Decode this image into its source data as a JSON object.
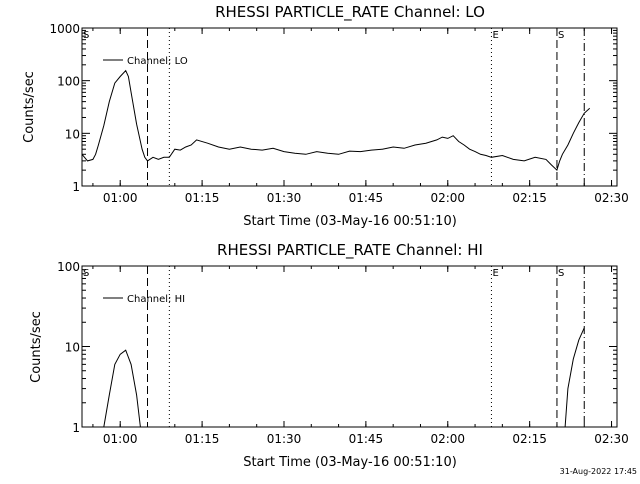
{
  "chart_data": [
    {
      "type": "line",
      "title": "RHESSI PARTICLE_RATE Channel: LO",
      "xlabel": "Start Time (03-May-16 00:51:10)",
      "ylabel": "Counts/sec",
      "yscale": "log",
      "ylim": [
        1,
        1000
      ],
      "xlim_minutes_after_00:00": [
        53,
        151
      ],
      "x_tick_labels": [
        "01:00",
        "01:15",
        "01:30",
        "01:45",
        "02:00",
        "02:15",
        "02:30"
      ],
      "y_tick_labels": [
        "1",
        "10",
        "100",
        "1000"
      ],
      "legend": [
        "Channel: LO"
      ],
      "event_markers": [
        {
          "label": "S",
          "time": "00:53",
          "style": "none"
        },
        {
          "label": "",
          "time": "01:05",
          "style": "dashed"
        },
        {
          "label": "",
          "time": "01:09",
          "style": "dotted"
        },
        {
          "label": "E",
          "time": "02:08",
          "style": "dotted"
        },
        {
          "label": "S",
          "time": "02:20",
          "style": "dashed"
        },
        {
          "label": "",
          "time": "02:25",
          "style": "dash-dot"
        }
      ],
      "series": [
        {
          "name": "Channel: LO",
          "x_minutes": [
            53,
            54,
            55,
            55.5,
            56,
            57,
            58,
            59,
            60,
            61,
            61.5,
            62,
            63,
            64,
            64.5,
            65,
            66,
            67,
            68,
            69,
            70,
            71,
            72,
            73,
            74,
            76,
            78,
            80,
            82,
            84,
            86,
            88,
            90,
            92,
            94,
            96,
            98,
            100,
            102,
            104,
            106,
            108,
            110,
            112,
            114,
            116,
            118,
            119,
            120,
            121,
            122,
            123,
            124,
            125,
            126,
            127,
            128,
            130,
            132,
            134,
            136,
            138,
            139,
            140,
            140.5,
            141,
            142,
            143,
            144,
            145,
            146
          ],
          "values": [
            4,
            3,
            3.2,
            4,
            6,
            14,
            40,
            90,
            120,
            155,
            120,
            60,
            15,
            5,
            3.5,
            3,
            3.5,
            3.2,
            3.5,
            3.5,
            5,
            4.8,
            5.5,
            6,
            7.5,
            6.5,
            5.5,
            5,
            5.5,
            5,
            4.8,
            5.2,
            4.5,
            4.2,
            4,
            4.5,
            4.2,
            4,
            4.6,
            4.5,
            4.8,
            5,
            5.5,
            5.2,
            6,
            6.5,
            7.5,
            8.5,
            8,
            9,
            7,
            6,
            5,
            4.5,
            4,
            3.8,
            3.5,
            3.8,
            3.2,
            3,
            3.5,
            3.2,
            2.5,
            2,
            3,
            4,
            6,
            10,
            16,
            24,
            30
          ]
        }
      ]
    },
    {
      "type": "line",
      "title": "RHESSI PARTICLE_RATE Channel: HI",
      "xlabel": "Start Time (03-May-16 00:51:10)",
      "ylabel": "Counts/sec",
      "yscale": "log",
      "ylim": [
        1,
        100
      ],
      "xlim_minutes_after_00:00": [
        53,
        151
      ],
      "x_tick_labels": [
        "01:00",
        "01:15",
        "01:30",
        "01:45",
        "02:00",
        "02:15",
        "02:30"
      ],
      "y_tick_labels": [
        "1",
        "10",
        "100"
      ],
      "legend": [
        "Channel: HI"
      ],
      "event_markers": [
        {
          "label": "S",
          "time": "00:53",
          "style": "none"
        },
        {
          "label": "",
          "time": "01:05",
          "style": "dashed"
        },
        {
          "label": "",
          "time": "01:09",
          "style": "dotted"
        },
        {
          "label": "E",
          "time": "02:08",
          "style": "dotted"
        },
        {
          "label": "S",
          "time": "02:20",
          "style": "dashed"
        },
        {
          "label": "",
          "time": "02:25",
          "style": "dash-dot"
        }
      ],
      "series": [
        {
          "name": "Channel: HI",
          "segments": [
            {
              "x_minutes": [
                57,
                58,
                59,
                60,
                61,
                62,
                63,
                63.7
              ],
              "values": [
                1,
                2.5,
                6,
                8,
                9,
                6,
                2.5,
                1
              ]
            },
            {
              "x_minutes": [
                141.5,
                142,
                143,
                144,
                145
              ],
              "values": [
                1,
                3,
                7,
                12,
                17
              ]
            }
          ]
        }
      ]
    }
  ],
  "footer": {
    "timestamp": "31-Aug-2022 17:45"
  }
}
